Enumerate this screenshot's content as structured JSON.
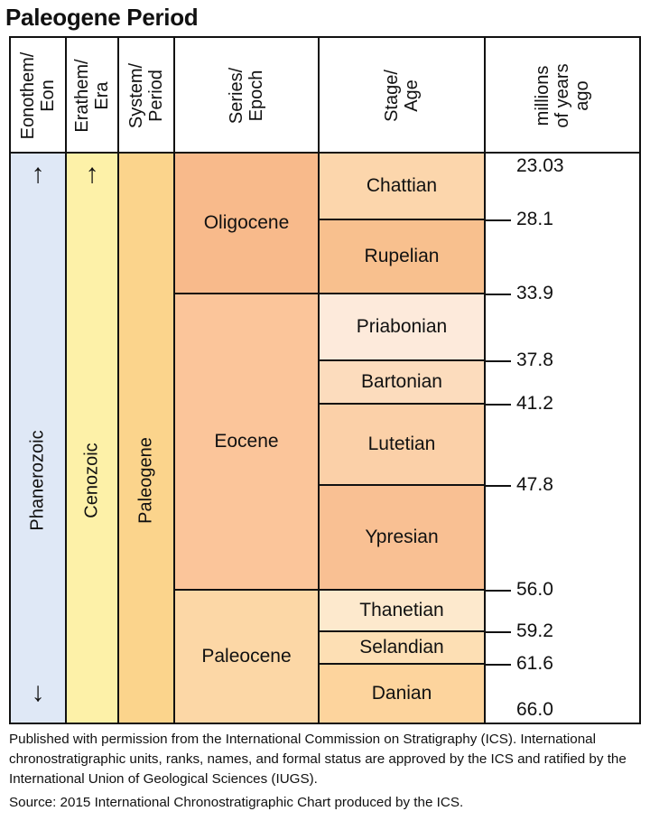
{
  "title": "Paleogene Period",
  "headers": {
    "eon": "Eonothem/\nEon",
    "era": "Erathem/\nEra",
    "period": "System/\nPeriod",
    "epoch": "Series/\nEpoch",
    "stage": "Stage/\nAge",
    "mya": "millions\nof years\nago"
  },
  "eon": {
    "name": "Phanerozoic",
    "arrow_up": "↑",
    "arrow_down": "↓"
  },
  "era": {
    "name": "Cenozoic",
    "arrow_up": "↑"
  },
  "period": {
    "name": "Paleogene"
  },
  "colors": {
    "eon": "#dfe8f6",
    "era": "#fdf1a8",
    "period": "#fbd48c",
    "oligocene": "#f8ba8b",
    "eocene": "#fbc59a",
    "paleocene": "#fcd7a6",
    "chattian": "#fcd6ac",
    "rupelian": "#f8c08e",
    "priabonian": "#fdeadb",
    "bartonian": "#fcdcbd",
    "lutetian": "#fbd0a8",
    "ypresian": "#f9c093",
    "thanetian": "#fde9cd",
    "selandian": "#fddfb4",
    "danian": "#fdd49d"
  },
  "epochs": [
    {
      "name": "Oligocene",
      "start": 23.03,
      "end": 33.9,
      "color_key": "oligocene"
    },
    {
      "name": "Eocene",
      "start": 33.9,
      "end": 56.0,
      "color_key": "eocene"
    },
    {
      "name": "Paleocene",
      "start": 56.0,
      "end": 66.0,
      "color_key": "paleocene"
    }
  ],
  "stages": [
    {
      "name": "Chattian",
      "start": 23.03,
      "end": 28.1,
      "color_key": "chattian"
    },
    {
      "name": "Rupelian",
      "start": 28.1,
      "end": 33.9,
      "color_key": "rupelian"
    },
    {
      "name": "Priabonian",
      "start": 33.9,
      "end": 37.8,
      "color_key": "priabonian"
    },
    {
      "name": "Bartonian",
      "start": 37.8,
      "end": 41.2,
      "color_key": "bartonian"
    },
    {
      "name": "Lutetian",
      "start": 41.2,
      "end": 47.8,
      "color_key": "lutetian"
    },
    {
      "name": "Ypresian",
      "start": 47.8,
      "end": 56.0,
      "color_key": "ypresian"
    },
    {
      "name": "Thanetian",
      "start": 56.0,
      "end": 59.2,
      "color_key": "thanetian"
    },
    {
      "name": "Selandian",
      "start": 59.2,
      "end": 61.6,
      "color_key": "selandian"
    },
    {
      "name": "Danian",
      "start": 61.6,
      "end": 66.0,
      "color_key": "danian"
    }
  ],
  "ages": [
    "23.03",
    "28.1",
    "33.9",
    "37.8",
    "41.2",
    "47.8",
    "56.0",
    "59.2",
    "61.6",
    "66.0"
  ],
  "footer": {
    "permission": "Published with permission from the International Commission on Stratigraphy (ICS). International chronostratigraphic units, ranks, names, and formal status are approved by the ICS and ratified by the International Union of Geological Sciences (IUGS).",
    "source": "Source: 2015 International Chronostratigraphic Chart produced by the ICS."
  }
}
